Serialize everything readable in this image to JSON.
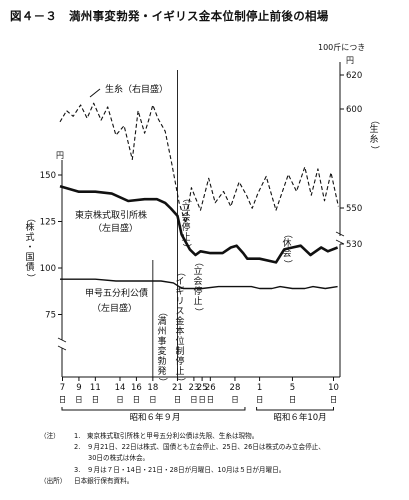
{
  "title": "図４－３　満州事変勃発・イギリス金本位制停止前後の相場",
  "chart_data": {
    "type": "line",
    "left_axis": {
      "unit": "円",
      "label": "（株式・国債）",
      "ticks": [
        75,
        100,
        125,
        150
      ],
      "range": [
        63,
        157
      ]
    },
    "right_axis": {
      "unit": "円",
      "header": "100斤につき",
      "label": "（生糸）",
      "ticks": [
        530,
        550,
        600,
        620
      ],
      "range": [
        510,
        628
      ]
    },
    "x_ticks": [
      {
        "n": 7,
        "label": "7"
      },
      {
        "n": 9,
        "label": "9"
      },
      {
        "n": 11,
        "label": "11"
      },
      {
        "n": 14,
        "label": "14"
      },
      {
        "n": 16,
        "label": "16"
      },
      {
        "n": 18,
        "label": "18"
      },
      {
        "n": 21,
        "label": "21"
      },
      {
        "n": 23,
        "label": "23"
      },
      {
        "n": 24,
        "label": "25"
      },
      {
        "n": 25,
        "label": "26"
      },
      {
        "n": 28,
        "label": "28"
      },
      {
        "n": 31,
        "label": "1"
      },
      {
        "n": 35,
        "label": "5"
      },
      {
        "n": 40,
        "label": "10"
      }
    ],
    "day_marker": "日",
    "month_labels": [
      "昭和６年９月",
      "昭和６年10月"
    ],
    "series": [
      {
        "name": "生糸（右目盛）",
        "axis": "right",
        "style": "dashed",
        "points": [
          [
            6.7,
            595
          ],
          [
            7.5,
            601
          ],
          [
            8.3,
            598
          ],
          [
            9.2,
            604
          ],
          [
            10.0,
            597
          ],
          [
            10.8,
            605
          ],
          [
            11.7,
            596
          ],
          [
            12.5,
            603
          ],
          [
            13.5,
            588
          ],
          [
            14.5,
            593
          ],
          [
            15.5,
            575
          ],
          [
            16.2,
            601
          ],
          [
            17.0,
            589
          ],
          [
            17.5,
            596
          ],
          [
            18.0,
            604
          ],
          [
            18.6,
            597
          ],
          [
            19.5,
            590
          ],
          [
            20.3,
            573
          ],
          [
            21.2,
            552
          ],
          [
            22.0,
            541
          ],
          [
            22.7,
            560
          ],
          [
            23.8,
            548
          ],
          [
            24.8,
            565
          ],
          [
            25.6,
            552
          ],
          [
            26.6,
            558
          ],
          [
            27.5,
            550
          ],
          [
            28.5,
            563
          ],
          [
            29.4,
            556
          ],
          [
            30.1,
            549
          ],
          [
            30.8,
            557
          ],
          [
            31.8,
            566
          ],
          [
            33.0,
            548
          ],
          [
            34.5,
            567
          ],
          [
            35.5,
            558
          ],
          [
            36.5,
            571
          ],
          [
            37.3,
            556
          ],
          [
            38.1,
            570
          ],
          [
            38.9,
            553
          ],
          [
            39.7,
            568
          ],
          [
            40.6,
            550
          ]
        ]
      },
      {
        "name": "東京株式取引所株（左目盛）",
        "axis": "left",
        "style": "solid-bold",
        "points": [
          [
            6.7,
            144
          ],
          [
            9.0,
            141
          ],
          [
            11.0,
            141
          ],
          [
            13.0,
            140
          ],
          [
            15.0,
            136
          ],
          [
            17.0,
            137
          ],
          [
            18.5,
            137
          ],
          [
            19.5,
            135
          ],
          [
            20.2,
            132
          ],
          [
            21.0,
            128
          ],
          [
            21.5,
            118
          ],
          [
            22.5,
            110
          ],
          [
            23.2,
            107
          ],
          [
            23.8,
            109
          ],
          [
            25.0,
            108
          ],
          [
            26.5,
            108
          ],
          [
            27.5,
            111
          ],
          [
            28.2,
            112
          ],
          [
            29.0,
            108
          ],
          [
            29.5,
            105
          ],
          [
            31.0,
            105
          ],
          [
            33.0,
            103
          ],
          [
            34.0,
            110
          ],
          [
            35.0,
            111
          ],
          [
            36.0,
            112
          ],
          [
            37.2,
            107
          ],
          [
            38.5,
            111
          ],
          [
            39.3,
            109
          ],
          [
            40.5,
            111
          ]
        ]
      },
      {
        "name": "甲号五分利公債（左目盛）",
        "axis": "left",
        "style": "solid",
        "points": [
          [
            6.7,
            94
          ],
          [
            9.0,
            94
          ],
          [
            11.0,
            94
          ],
          [
            13.5,
            93
          ],
          [
            15.5,
            93
          ],
          [
            17.5,
            93
          ],
          [
            19.0,
            93
          ],
          [
            20.5,
            92
          ],
          [
            21.2,
            90
          ],
          [
            21.7,
            89
          ],
          [
            22.5,
            89
          ],
          [
            24.0,
            89
          ],
          [
            26.0,
            90
          ],
          [
            28.0,
            90
          ],
          [
            30.0,
            90
          ],
          [
            31.0,
            89
          ],
          [
            32.5,
            89
          ],
          [
            33.5,
            90
          ],
          [
            35.0,
            89
          ],
          [
            36.5,
            89
          ],
          [
            37.5,
            90
          ],
          [
            39.0,
            89
          ],
          [
            40.5,
            90
          ]
        ]
      }
    ],
    "series_labels": [
      "生糸（右目盛）",
      "東京株式取引所株",
      "（左目盛）",
      "甲号五分利公債",
      "（左目盛）"
    ],
    "events": [
      {
        "n": 18,
        "text": "（満州事変勃発）"
      },
      {
        "n": 21,
        "text": "（イギリス金本位制停止）"
      }
    ],
    "annotations": [
      "（立会停止）",
      "（立会停止）",
      "（休会）"
    ]
  },
  "notes": {
    "note_label": "（注）",
    "lines": [
      "1.　東京株式取引所株と甲号五分利公債は先限、生糸は現物。",
      "2.　９月21日、22日は株式、国債とも立会停止、25日、26日は株式のみ立会停止、",
      "30日の株式は休会。",
      "3.　９月は７日・14日・21日・28日が月曜日、10月は５日が月曜日。"
    ],
    "source_label": "（出所）",
    "source": "日本銀行保有資料。"
  }
}
